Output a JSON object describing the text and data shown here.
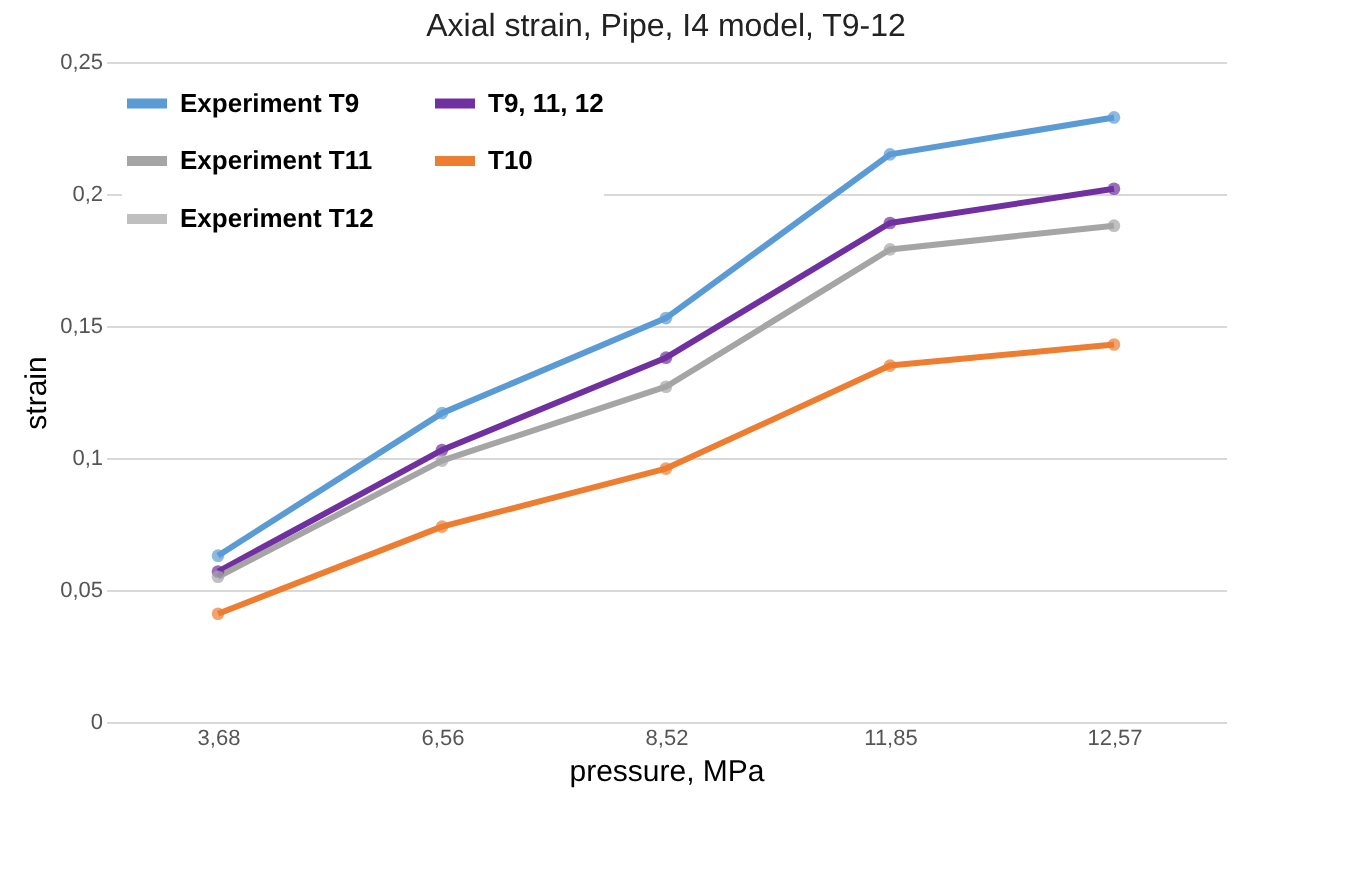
{
  "chart_data": {
    "type": "line",
    "title": "Axial strain, Pipe, I4 model, T9-12",
    "xlabel": "pressure, MPa",
    "ylabel": "strain",
    "categories": [
      "3,68",
      "6,56",
      "8,52",
      "11,85",
      "12,57"
    ],
    "series": [
      {
        "name": "Experiment T9",
        "color": "#5b9bd5",
        "values": [
          0.063,
          0.117,
          0.153,
          0.215,
          0.229
        ]
      },
      {
        "name": "T9, 11, 12",
        "color": "#7030a0",
        "values": [
          0.057,
          0.103,
          0.138,
          0.189,
          0.202
        ]
      },
      {
        "name": "Experiment T11",
        "color": "#a5a5a5",
        "values": [
          0.055,
          0.099,
          0.127,
          0.179,
          0.188
        ]
      },
      {
        "name": "T10",
        "color": "#ed7d31",
        "values": [
          0.041,
          0.074,
          0.096,
          0.135,
          0.143
        ]
      },
      {
        "name": "Experiment T12",
        "color": "#bfbfbf",
        "values": [
          null,
          null,
          null,
          null,
          null
        ]
      }
    ],
    "ylim": [
      0,
      0.25
    ],
    "yticks": [
      {
        "value": 0,
        "label": "0"
      },
      {
        "value": 0.05,
        "label": "0,05"
      },
      {
        "value": 0.1,
        "label": "0,1"
      },
      {
        "value": 0.15,
        "label": "0,15"
      },
      {
        "value": 0.2,
        "label": "0,2"
      },
      {
        "value": 0.25,
        "label": "0,25"
      }
    ],
    "grid": "y",
    "legend": "top left",
    "marker": "circle",
    "line_style": "solid"
  }
}
